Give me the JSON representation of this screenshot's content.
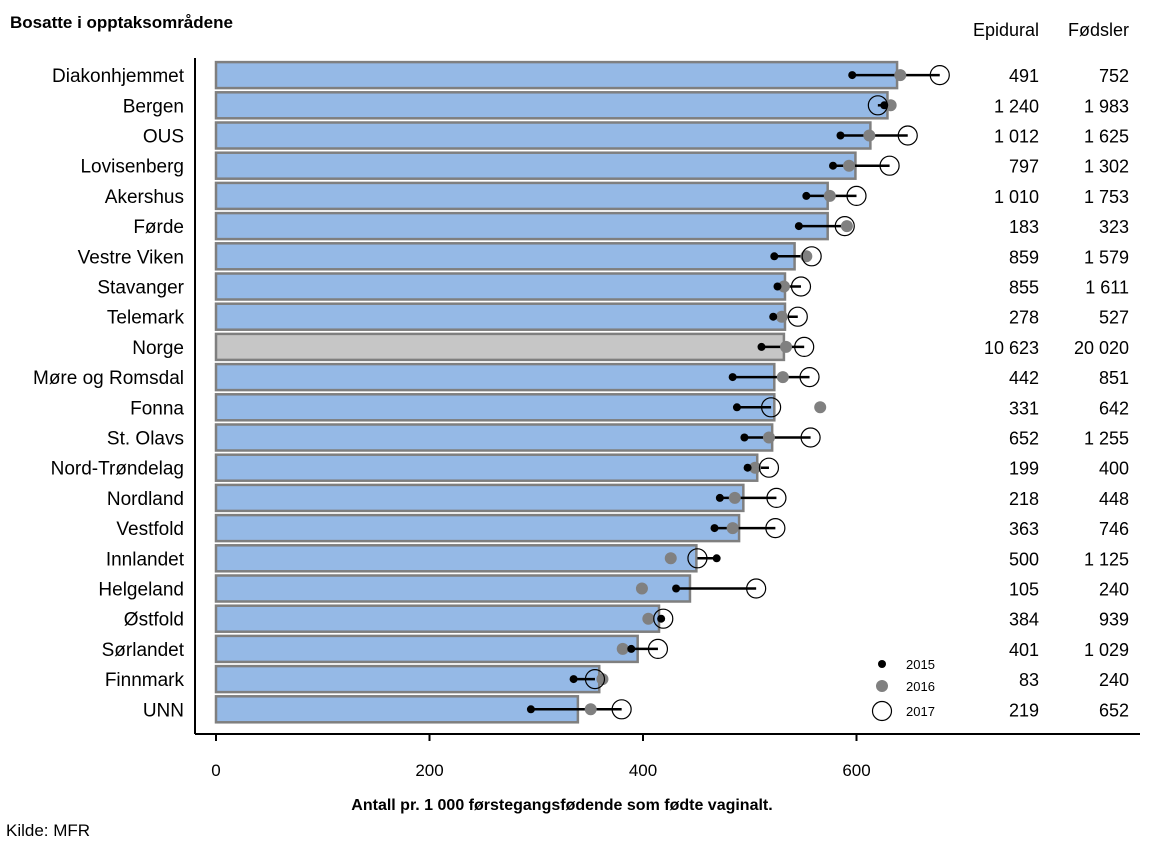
{
  "chart_data": {
    "type": "bar",
    "title": "Bosatte i opptaksområdene",
    "xlabel": "Antall pr. 1 000 førstegangsfødende som fødte vaginalt.",
    "source": "Kilde: MFR",
    "xlim": [
      0,
      870
    ],
    "xticks": [
      0,
      200,
      400,
      600
    ],
    "grid": false,
    "legend_position": "bottom-right",
    "column_headers": [
      "Epidural",
      "Fødsler"
    ],
    "highlight_category": "Norge",
    "colors": {
      "bar": "#95b9e6",
      "bar_highlight": "#c6c6c6",
      "bar_border": "#7f7f7f",
      "dot2015": "#000000",
      "dot2016": "#808080",
      "dot2017": "#ffffff"
    },
    "categories": [
      "Diakonhjemmet",
      "Bergen",
      "OUS",
      "Lovisenberg",
      "Akershus",
      "Førde",
      "Vestre Viken",
      "Stavanger",
      "Telemark",
      "Norge",
      "Møre og Romsdal",
      "Fonna",
      "St. Olavs",
      "Nord-Trøndelag",
      "Nordland",
      "Vestfold",
      "Innlandet",
      "Helgeland",
      "Østfold",
      "Sørlandet",
      "Finnmark",
      "UNN"
    ],
    "values": [
      638,
      629,
      613,
      599,
      573,
      573,
      542,
      533,
      533,
      532,
      523,
      523,
      521,
      507,
      494,
      490,
      450,
      444,
      415,
      395,
      359,
      339
    ],
    "series": [
      {
        "name": "2015",
        "values": [
          596,
          626,
          585,
          578,
          553,
          546,
          523,
          526,
          522,
          511,
          484,
          488,
          495,
          498,
          472,
          467,
          469,
          431,
          417,
          389,
          335,
          295
        ]
      },
      {
        "name": "2016",
        "values": [
          641,
          632,
          612,
          593,
          575,
          591,
          553,
          532,
          530,
          534,
          531,
          566,
          518,
          505,
          486,
          484,
          426,
          399,
          405,
          381,
          362,
          351
        ]
      },
      {
        "name": "2017",
        "values": [
          678,
          620,
          648,
          631,
          600,
          589,
          558,
          548,
          545,
          551,
          556,
          520,
          557,
          518,
          525,
          524,
          451,
          506,
          419,
          414,
          355,
          380
        ]
      }
    ],
    "epidural": [
      "491",
      "1 240",
      "1 012",
      "797",
      "1 010",
      "183",
      "859",
      "855",
      "278",
      "10 623",
      "442",
      "331",
      "652",
      "199",
      "218",
      "363",
      "500",
      "105",
      "384",
      "401",
      "83",
      "219"
    ],
    "fodsler": [
      "752",
      "1 983",
      "1 625",
      "1 302",
      "1 753",
      "323",
      "1 579",
      "1 611",
      "527",
      "20 020",
      "851",
      "642",
      "1 255",
      "400",
      "448",
      "746",
      "1 125",
      "240",
      "939",
      "1 029",
      "240",
      "652"
    ]
  }
}
